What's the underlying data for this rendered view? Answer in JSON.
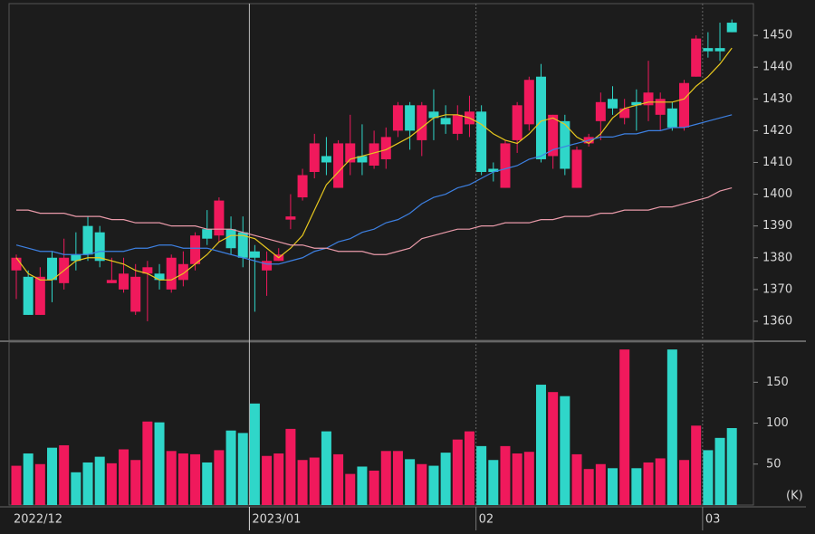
{
  "chart_data": [
    {
      "type": "candlestick",
      "categories": [
        "2022/12",
        null,
        null,
        null,
        null,
        null,
        null,
        null,
        null,
        null,
        null,
        null,
        null,
        null,
        null,
        null,
        null,
        null,
        null,
        null,
        "2023/01",
        null,
        null,
        null,
        null,
        null,
        null,
        null,
        null,
        null,
        null,
        null,
        null,
        null,
        null,
        null,
        null,
        null,
        null,
        "02",
        null,
        null,
        null,
        null,
        null,
        null,
        null,
        null,
        null,
        null,
        null,
        null,
        null,
        null,
        null,
        null,
        null,
        null,
        "03",
        null,
        null
      ],
      "open": [
        1376,
        1374,
        1362,
        1380,
        1372,
        1381,
        1390,
        1388,
        1372,
        1370,
        1363,
        1375,
        1375,
        1370,
        1373,
        1378,
        1389,
        1387,
        1389,
        1388,
        1382,
        1376,
        1379,
        1392,
        1399,
        1407,
        1412,
        1402,
        1410,
        1412,
        1409,
        1411,
        1420,
        1428,
        1417,
        1426,
        1424,
        1419,
        1422,
        1426,
        1408,
        1402,
        1417,
        1422,
        1437,
        1412,
        1423,
        1402,
        1416,
        1423,
        1430,
        1424,
        1429,
        1428,
        1425,
        1427,
        1421,
        1437,
        1446,
        1446,
        1454
      ],
      "high": [
        1381,
        1376,
        1377,
        1382,
        1386,
        1388,
        1393,
        1390,
        1380,
        1380,
        1378,
        1379,
        1378,
        1381,
        1382,
        1388,
        1395,
        1399,
        1393,
        1393,
        1384,
        1382,
        1383,
        1400,
        1408,
        1419,
        1418,
        1417,
        1425,
        1422,
        1420,
        1421,
        1429,
        1429,
        1429,
        1433,
        1428,
        1428,
        1431,
        1428,
        1410,
        1417,
        1429,
        1437,
        1441,
        1425,
        1425,
        1415,
        1419,
        1432,
        1434,
        1430,
        1433,
        1442,
        1432,
        1429,
        1436,
        1450,
        1451,
        1454,
        1455
      ],
      "low": [
        1367,
        1362,
        1362,
        1366,
        1370,
        1376,
        1379,
        1377,
        1372,
        1369,
        1362,
        1360,
        1370,
        1369,
        1371,
        1376,
        1384,
        1385,
        1381,
        1377,
        1363,
        1368,
        1379,
        1389,
        1398,
        1405,
        1406,
        1402,
        1406,
        1406,
        1408,
        1408,
        1418,
        1414,
        1412,
        1417,
        1419,
        1417,
        1418,
        1406,
        1404,
        1402,
        1413,
        1420,
        1410,
        1408,
        1406,
        1402,
        1415,
        1417,
        1425,
        1422,
        1420,
        1423,
        1420,
        1420,
        1420,
        1437,
        1443,
        1442,
        1451
      ],
      "close": [
        1380,
        1362,
        1374,
        1373,
        1380,
        1379,
        1381,
        1379,
        1373,
        1375,
        1374,
        1377,
        1373,
        1380,
        1378,
        1387,
        1386,
        1398,
        1383,
        1380,
        1380,
        1379,
        1381,
        1393,
        1406,
        1416,
        1410,
        1416,
        1416,
        1410,
        1416,
        1418,
        1428,
        1420,
        1428,
        1424,
        1422,
        1425,
        1426,
        1407,
        1407,
        1416,
        1428,
        1436,
        1411,
        1425,
        1408,
        1414,
        1418,
        1429,
        1427,
        1427,
        1428,
        1432,
        1430,
        1421,
        1435,
        1449,
        1445,
        1445,
        1451
      ],
      "up_color": "#f0195c",
      "down_color": "#2fd6c9",
      "series": [
        {
          "color": "#e8c81e",
          "values": [
            1380,
            1375,
            1373,
            1373,
            1376,
            1379,
            1380,
            1380,
            1379,
            1378,
            1376,
            1375,
            1373,
            1373,
            1375,
            1378,
            1381,
            1385,
            1387,
            1387,
            1386,
            1383,
            1380,
            1383,
            1387,
            1395,
            1403,
            1407,
            1411,
            1412,
            1413,
            1414,
            1416,
            1418,
            1421,
            1424,
            1425,
            1425,
            1424,
            1422,
            1419,
            1417,
            1416,
            1419,
            1423,
            1424,
            1422,
            1418,
            1416,
            1419,
            1424,
            1427,
            1428,
            1429,
            1429,
            1429,
            1430,
            1434,
            1437,
            1441,
            1446
          ]
        },
        {
          "color": "#3d80e2",
          "values": [
            1384,
            1383,
            1382,
            1382,
            1381,
            1381,
            1381,
            1382,
            1382,
            1382,
            1383,
            1383,
            1384,
            1384,
            1383,
            1383,
            1383,
            1382,
            1381,
            1380,
            1379,
            1378,
            1378,
            1379,
            1380,
            1382,
            1383,
            1385,
            1386,
            1388,
            1389,
            1391,
            1392,
            1394,
            1397,
            1399,
            1400,
            1402,
            1403,
            1405,
            1407,
            1408,
            1409,
            1411,
            1412,
            1414,
            1415,
            1416,
            1417,
            1418,
            1418,
            1419,
            1419,
            1420,
            1420,
            1421,
            1421,
            1422,
            1423,
            1424,
            1425
          ]
        },
        {
          "color": "#e99aa9",
          "values": [
            1395,
            1395,
            1394,
            1394,
            1394,
            1393,
            1393,
            1393,
            1392,
            1392,
            1391,
            1391,
            1391,
            1390,
            1390,
            1390,
            1389,
            1389,
            1389,
            1388,
            1387,
            1386,
            1385,
            1384,
            1384,
            1383,
            1383,
            1382,
            1382,
            1382,
            1381,
            1381,
            1382,
            1383,
            1386,
            1387,
            1388,
            1389,
            1389,
            1390,
            1390,
            1391,
            1391,
            1391,
            1392,
            1392,
            1393,
            1393,
            1393,
            1394,
            1394,
            1395,
            1395,
            1395,
            1396,
            1396,
            1397,
            1398,
            1399,
            1401,
            1402
          ]
        }
      ],
      "ylim": [
        1354,
        1460
      ],
      "yticks": [
        1360,
        1370,
        1380,
        1390,
        1400,
        1410,
        1420,
        1430,
        1440,
        1450
      ]
    },
    {
      "type": "bar",
      "values": [
        48,
        63,
        50,
        70,
        73,
        40,
        52,
        59,
        51,
        68,
        55,
        102,
        101,
        66,
        63,
        62,
        52,
        67,
        91,
        88,
        124,
        60,
        63,
        93,
        55,
        58,
        90,
        62,
        38,
        47,
        42,
        66,
        66,
        56,
        50,
        48,
        64,
        80,
        90,
        72,
        55,
        72,
        63,
        65,
        147,
        138,
        133,
        62,
        44,
        50,
        45,
        190,
        45,
        52,
        57,
        190,
        55,
        97,
        67,
        82,
        94
      ],
      "ylim": [
        0,
        199
      ],
      "yticks": [
        50,
        100,
        150
      ],
      "unit_label": "(K)"
    }
  ]
}
